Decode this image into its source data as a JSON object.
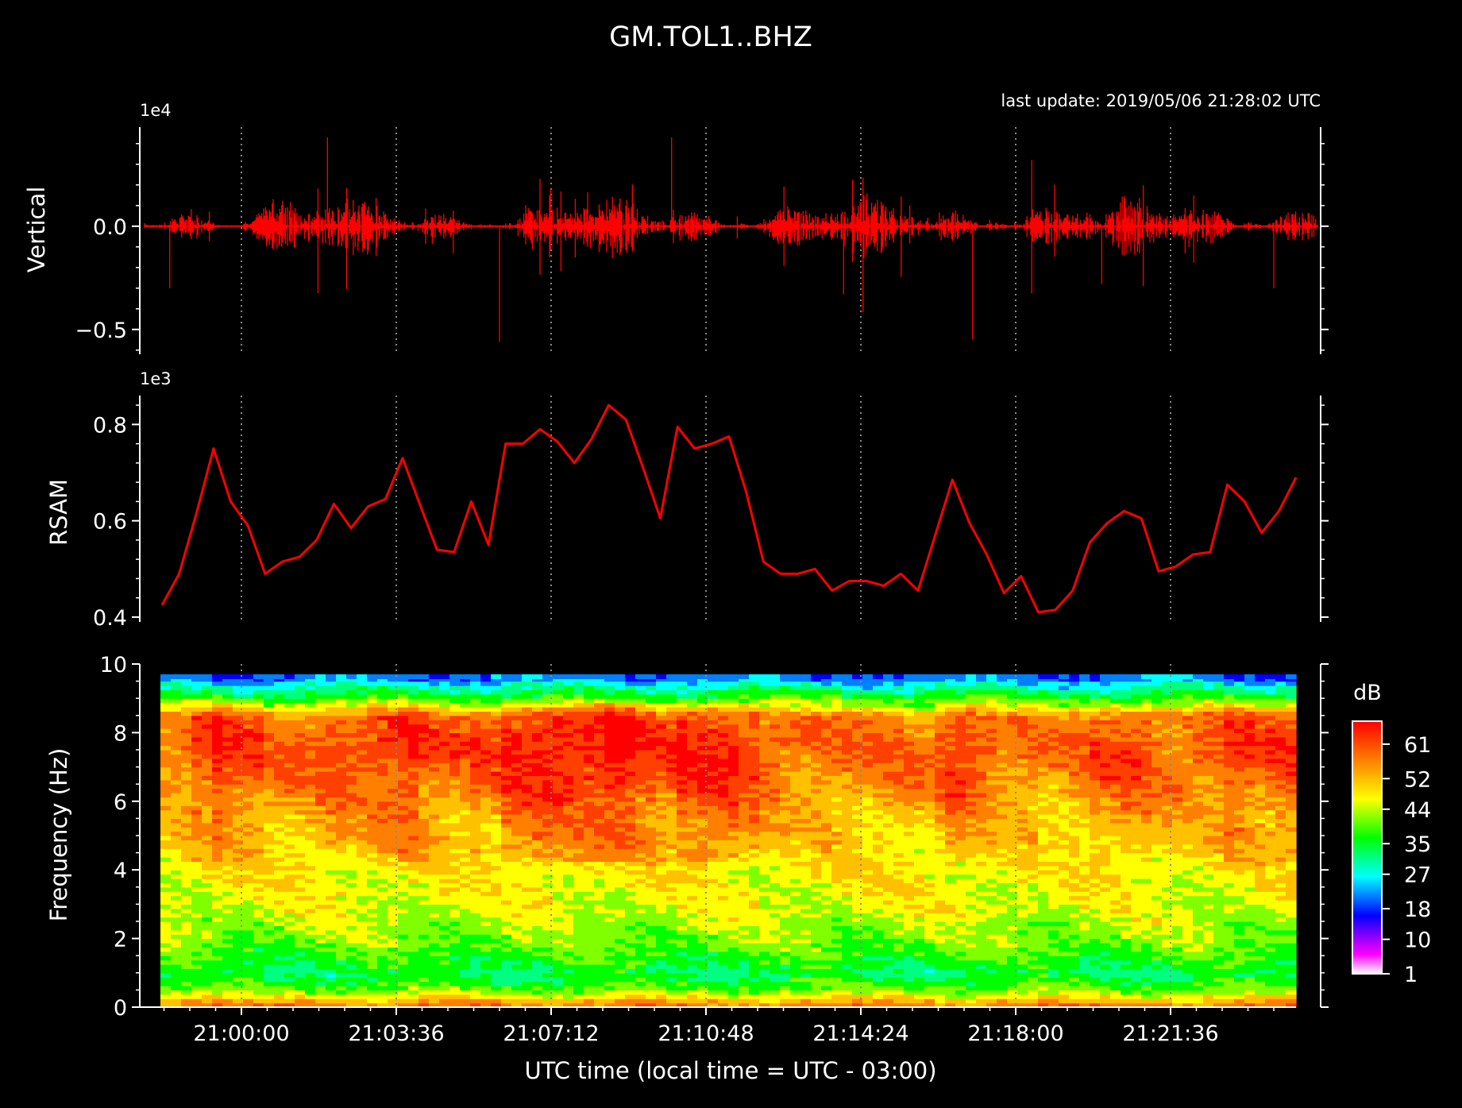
{
  "title": "GM.TOL1..BHZ",
  "last_update": "last update: 2019/05/06 21:28:02 UTC",
  "colors": {
    "background": "#000000",
    "foreground": "#ffffff",
    "trace": "#ff0000",
    "gridline": "#888888"
  },
  "chart_data": [
    {
      "type": "line",
      "panel": "waveform",
      "ylabel": "Vertical",
      "offset_label": "1e4",
      "yticks": [
        {
          "value": 0.0,
          "label": "0.0"
        },
        {
          "value": -0.5,
          "label": "−0.5"
        }
      ],
      "ylim": [
        -0.62,
        0.48
      ],
      "envelope": {
        "x_min": [
          "20:58:20",
          "21:02:00",
          "21:06:00",
          "21:10:00",
          "21:14:00",
          "21:17:00",
          "21:20:00",
          "21:24:00"
        ],
        "y_min_max": [
          -0.3,
          0.43,
          -0.56,
          0.43,
          -0.33,
          -0.55,
          -0.28,
          -0.3
        ]
      },
      "quiet_segments": [
        "21:06:20",
        "21:20:00"
      ],
      "grid": true
    },
    {
      "type": "line",
      "panel": "rsam",
      "ylabel": "RSAM",
      "offset_label": "1e3",
      "yticks": [
        {
          "value": 0.4,
          "label": "0.4"
        },
        {
          "value": 0.6,
          "label": "0.6"
        },
        {
          "value": 0.8,
          "label": "0.8"
        }
      ],
      "ylim": [
        0.39,
        0.86
      ],
      "series": [
        {
          "values": [
            0.425,
            0.49,
            0.615,
            0.75,
            0.64,
            0.59,
            0.49,
            0.515,
            0.525,
            0.56,
            0.635,
            0.585,
            0.63,
            0.645,
            0.73,
            0.635,
            0.54,
            0.535,
            0.64,
            0.55,
            0.76,
            0.76,
            0.79,
            0.765,
            0.72,
            0.77,
            0.84,
            0.81,
            0.71,
            0.605,
            0.795,
            0.75,
            0.76,
            0.775,
            0.66,
            0.515,
            0.49,
            0.49,
            0.5,
            0.455,
            0.475,
            0.475,
            0.465,
            0.49,
            0.455,
            0.57,
            0.685,
            0.595,
            0.53,
            0.45,
            0.485,
            0.41,
            0.415,
            0.455,
            0.555,
            0.595,
            0.62,
            0.605,
            0.495,
            0.505,
            0.53,
            0.535,
            0.675,
            0.64,
            0.575,
            0.62,
            0.69
          ]
        }
      ],
      "grid": true
    },
    {
      "type": "heatmap",
      "panel": "spectrogram",
      "ylabel": "Frequency (Hz)",
      "xlabel": "UTC time (local time = UTC - 03:00)",
      "xticks": [
        "21:00:00",
        "21:03:36",
        "21:07:12",
        "21:10:48",
        "21:14:24",
        "21:18:00",
        "21:21:36"
      ],
      "yticks": [
        0,
        2,
        4,
        6,
        8,
        10
      ],
      "ylim": [
        0,
        10
      ],
      "colorbar": {
        "label": "dB",
        "ticks": [
          1,
          10,
          18,
          27,
          35,
          44,
          52,
          61
        ],
        "range": [
          1,
          67
        ],
        "colormap": [
          "#ffffff",
          "#ff00ff",
          "#8000ff",
          "#0000ff",
          "#0080ff",
          "#00ffff",
          "#00ff80",
          "#00ff00",
          "#80ff00",
          "#ffff00",
          "#ffc000",
          "#ff8000",
          "#ff4000",
          "#ff0000"
        ]
      },
      "frequency_profile": {
        "frequency_hz": [
          0.1,
          0.5,
          1.0,
          1.5,
          2.0,
          2.5,
          3.0,
          3.5,
          4.0,
          4.5,
          5.0,
          5.5,
          6.0,
          6.5,
          7.0,
          7.5,
          8.0,
          8.5,
          9.0,
          9.3,
          9.6
        ],
        "db": [
          55,
          40,
          33,
          38,
          41,
          43,
          45,
          46,
          47,
          50,
          52,
          53,
          55,
          57,
          59,
          60,
          59,
          57,
          38,
          30,
          22
        ]
      },
      "grid": true
    }
  ]
}
